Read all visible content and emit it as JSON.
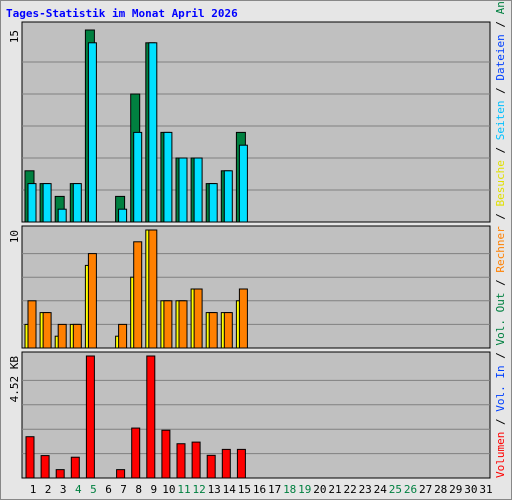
{
  "title": "Tages-Statistik im Monat April 2026",
  "colors": {
    "anfragen": "#008040",
    "dateien": "#00e0ff",
    "besuche": "#ffff00",
    "rechner": "#ff8000",
    "volumen": "#ff0000",
    "seiten": "#00c0ff",
    "plot_bg": "#c0c0c0",
    "frame_bg": "#e6e6e6",
    "title": "#0000ff",
    "weekend": "#008040",
    "weekday": "#000000"
  },
  "chart_data": [
    {
      "type": "bar",
      "name": "requests",
      "categories": [
        "1",
        "2",
        "3",
        "4",
        "5",
        "6",
        "7",
        "8",
        "9",
        "10",
        "11",
        "12",
        "13",
        "14",
        "15",
        "16",
        "17",
        "18",
        "19",
        "20",
        "21",
        "22",
        "23",
        "24",
        "25",
        "26",
        "27",
        "28",
        "29",
        "30",
        "31"
      ],
      "ymax_label": "15",
      "ylim": [
        0,
        15
      ],
      "series": [
        {
          "name": "Anfragen",
          "values": [
            4,
            3,
            2,
            3,
            15,
            0,
            2,
            10,
            14,
            7,
            5,
            5,
            3,
            4,
            7,
            0,
            0,
            0,
            0,
            0,
            0,
            0,
            0,
            0,
            0,
            0,
            0,
            0,
            0,
            0,
            0
          ]
        },
        {
          "name": "Dateien",
          "values": [
            3,
            3,
            1,
            3,
            14,
            0,
            1,
            7,
            14,
            7,
            5,
            5,
            3,
            4,
            6,
            0,
            0,
            0,
            0,
            0,
            0,
            0,
            0,
            0,
            0,
            0,
            0,
            0,
            0,
            0,
            0
          ]
        }
      ]
    },
    {
      "type": "bar",
      "name": "visits",
      "ymax_label": "10",
      "ylim": [
        0,
        10
      ],
      "series": [
        {
          "name": "Besuche",
          "values": [
            2,
            3,
            1,
            2,
            7,
            0,
            1,
            6,
            10,
            4,
            4,
            5,
            3,
            3,
            4,
            0,
            0,
            0,
            0,
            0,
            0,
            0,
            0,
            0,
            0,
            0,
            0,
            0,
            0,
            0,
            0
          ]
        },
        {
          "name": "Rechner",
          "values": [
            4,
            3,
            2,
            2,
            8,
            0,
            2,
            9,
            10,
            4,
            4,
            5,
            3,
            3,
            5,
            0,
            0,
            0,
            0,
            0,
            0,
            0,
            0,
            0,
            0,
            0,
            0,
            0,
            0,
            0,
            0
          ]
        }
      ]
    },
    {
      "type": "bar",
      "name": "volume",
      "ymax_label": "4.52 KB",
      "ylim": [
        0,
        4.52
      ],
      "series": [
        {
          "name": "Volumen",
          "values": [
            1.53,
            0.83,
            0.31,
            0.77,
            4.52,
            0,
            0.31,
            1.85,
            4.52,
            1.77,
            1.27,
            1.33,
            0.84,
            1.06,
            1.06,
            0,
            0,
            0,
            0,
            0,
            0,
            0,
            0,
            0,
            0,
            0,
            0,
            0,
            0,
            0,
            0
          ]
        }
      ]
    }
  ],
  "weekend_days": [
    4,
    5,
    11,
    12,
    18,
    19,
    25,
    26
  ],
  "right_legend": [
    {
      "text": "Volumen",
      "color": "#ff0000"
    },
    {
      "text": " / ",
      "color": "#000000"
    },
    {
      "text": "Vol. In",
      "color": "#0040ff"
    },
    {
      "text": " / ",
      "color": "#000000"
    },
    {
      "text": "Vol. Out",
      "color": "#008040"
    },
    {
      "text": " / ",
      "color": "#000000"
    },
    {
      "text": "Rechner",
      "color": "#ff8000"
    },
    {
      "text": " / ",
      "color": "#000000"
    },
    {
      "text": "Besuche",
      "color": "#e0e000"
    },
    {
      "text": " / ",
      "color": "#000000"
    },
    {
      "text": "Seiten",
      "color": "#00c0ff"
    },
    {
      "text": " / ",
      "color": "#000000"
    },
    {
      "text": "Dateien",
      "color": "#0040ff"
    },
    {
      "text": " / ",
      "color": "#000000"
    },
    {
      "text": "Anfragen",
      "color": "#008040"
    }
  ]
}
